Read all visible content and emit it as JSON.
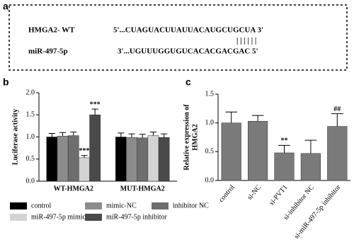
{
  "panel_a": {
    "label": "a",
    "rows": [
      {
        "name": "HMGA2- WT",
        "sequence": "5'...CUAGUACUUAUUACAUGCUGCUA 3'"
      },
      {
        "name": "miR-497-5p",
        "sequence": "3'...UGUUUGGUGUCACACGACGAC 5'"
      }
    ],
    "pairing": "| | | | | |"
  },
  "chart_data": [
    {
      "type": "bar",
      "panel": "b",
      "ylabel": [
        "Luciferase activity"
      ],
      "categories": [
        "WT-HMGA2",
        "MUT-HMGA2"
      ],
      "series": [
        {
          "name": "control",
          "color": "#000000",
          "values": [
            1.0,
            1.0
          ],
          "errors": [
            0.08,
            0.09
          ]
        },
        {
          "name": "mimic-NC",
          "color": "#8c8c8c",
          "values": [
            1.02,
            0.99
          ],
          "errors": [
            0.08,
            0.08
          ]
        },
        {
          "name": "inhibitor NC",
          "color": "#6e6e6e",
          "values": [
            1.03,
            0.98
          ],
          "errors": [
            0.08,
            0.08
          ]
        },
        {
          "name": "miR-497-5p mimic",
          "color": "#d3d3d3",
          "values": [
            0.53,
            1.03
          ],
          "errors": [
            0.05,
            0.08
          ],
          "significance": [
            "***",
            null
          ]
        },
        {
          "name": "miR-497-5p inhibitor",
          "color": "#4a4a4a",
          "values": [
            1.5,
            0.99
          ],
          "errors": [
            0.13,
            0.08
          ],
          "significance": [
            "***",
            null
          ]
        }
      ],
      "ylim": [
        0,
        2.0
      ],
      "yticks": [
        {
          "value": 0,
          "label": "0.0"
        },
        {
          "value": 0.5,
          "label": "0.5"
        },
        {
          "value": 1.0,
          "label": "1.0"
        },
        {
          "value": 1.5,
          "label": "1.5"
        },
        {
          "value": 2.0,
          "label": "2.0"
        }
      ]
    },
    {
      "type": "bar",
      "panel": "c",
      "ylabel": [
        "Relative expression of",
        "HMGA2"
      ],
      "categories": [
        "control",
        "si-NC",
        "si-PVT1",
        "si-inhibitor NC",
        "si-miR-497-5p inhibitor"
      ],
      "series": [
        {
          "color": "#7a7a7a",
          "values": [
            1.0,
            1.03,
            0.48,
            0.47,
            0.94
          ],
          "errors": [
            0.19,
            0.1,
            0.13,
            0.23,
            0.22
          ],
          "significance": [
            null,
            null,
            "**",
            null,
            "##"
          ]
        }
      ],
      "ylim": [
        0,
        1.5
      ],
      "yticks": [
        {
          "value": 0,
          "label": "0.0"
        },
        {
          "value": 0.5,
          "label": "0.5"
        },
        {
          "value": 1.0,
          "label": "1.0"
        },
        {
          "value": 1.5,
          "label": "1.5"
        }
      ]
    }
  ]
}
